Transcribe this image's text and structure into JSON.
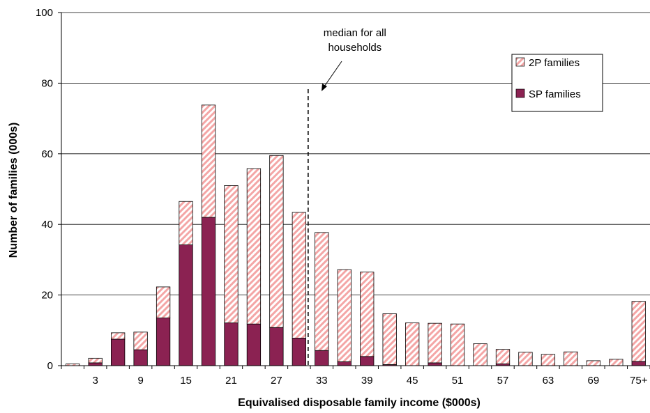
{
  "chart_data": {
    "type": "bar",
    "stacked": true,
    "title": "",
    "xlabel": "Equivalised disposable family income ($000s)",
    "ylabel": "Number of families (000s)",
    "ylim": [
      0,
      100
    ],
    "yticks": [
      "0",
      "20",
      "40",
      "60",
      "80",
      "100"
    ],
    "grid": true,
    "legend_position": "top-right",
    "categories": [
      "0",
      "3",
      "6",
      "9",
      "12",
      "15",
      "18",
      "21",
      "24",
      "27",
      "30",
      "33",
      "36",
      "39",
      "42",
      "45",
      "48",
      "51",
      "54",
      "57",
      "60",
      "63",
      "66",
      "69",
      "72",
      "75+"
    ],
    "tick_labels": [
      "",
      "3",
      "",
      "9",
      "",
      "15",
      "",
      "21",
      "",
      "27",
      "",
      "33",
      "",
      "39",
      "",
      "45",
      "",
      "51",
      "",
      "57",
      "",
      "63",
      "",
      "69",
      "",
      "75+"
    ],
    "series": [
      {
        "name": "SP families",
        "color": "#8B2252",
        "pattern": "solid",
        "values": [
          0,
          0.8,
          7.5,
          4.5,
          13.5,
          34.2,
          42.0,
          12.1,
          11.8,
          10.8,
          7.8,
          4.3,
          1.1,
          2.6,
          0.3,
          0,
          0.8,
          0,
          0,
          0.5,
          0,
          0,
          0,
          0,
          0,
          1.2
        ]
      },
      {
        "name": "2P families",
        "color": "#F4A6A6",
        "pattern": "diagonal-stripes",
        "values": [
          0.5,
          1.3,
          1.8,
          5.0,
          8.8,
          12.3,
          31.8,
          38.9,
          44.0,
          48.7,
          35.6,
          33.4,
          26.1,
          23.9,
          14.4,
          12.1,
          11.2,
          11.8,
          6.2,
          4.1,
          3.8,
          3.2,
          3.9,
          1.4,
          1.8,
          17.0
        ]
      }
    ],
    "annotations": [
      {
        "text_lines": [
          "median for all",
          "households"
        ],
        "type": "vertical-dashed-line",
        "x_value": 30.5
      }
    ]
  }
}
